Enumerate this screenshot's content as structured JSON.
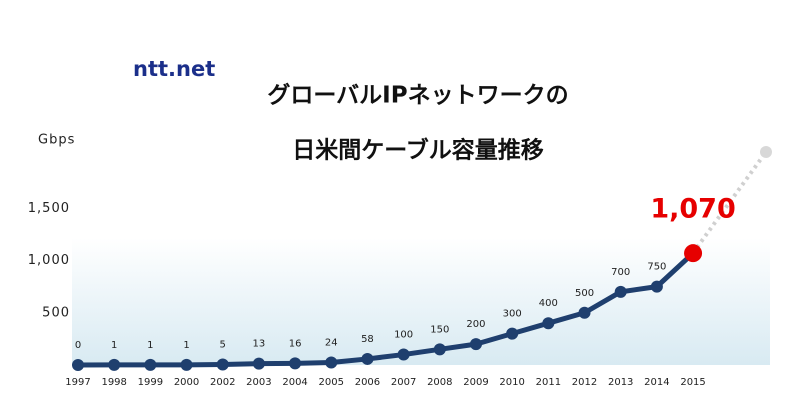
{
  "chart_data": {
    "type": "line",
    "logo": "ntt.net",
    "title": [
      "グローバルIPネットワークの",
      "日米間ケーブル容量推移"
    ],
    "y_label": "Gbps",
    "categories": [
      "1997",
      "1998",
      "1999",
      "2000",
      "2002",
      "2003",
      "2004",
      "2005",
      "2006",
      "2007",
      "2008",
      "2009",
      "2010",
      "2011",
      "2012",
      "2013",
      "2014",
      "2015"
    ],
    "values": [
      0,
      1,
      1,
      1,
      5,
      13,
      16,
      24,
      58,
      100,
      150,
      200,
      300,
      400,
      500,
      700,
      750,
      1070
    ],
    "value_labels": [
      "0",
      "1",
      "1",
      "1",
      "5",
      "13",
      "16",
      "24",
      "58",
      "100",
      "150",
      "200",
      "300",
      "400",
      "500",
      "700",
      "750",
      "1,070"
    ],
    "color": "#1f3f6e",
    "highlight_color": "#e60000",
    "ylim": [
      0,
      2000
    ],
    "yticks": [
      500,
      {
        "value": 1000,
        "label": "1,000"
      },
      {
        "value": 1500,
        "label": "1,500"
      }
    ],
    "grid": false
  }
}
